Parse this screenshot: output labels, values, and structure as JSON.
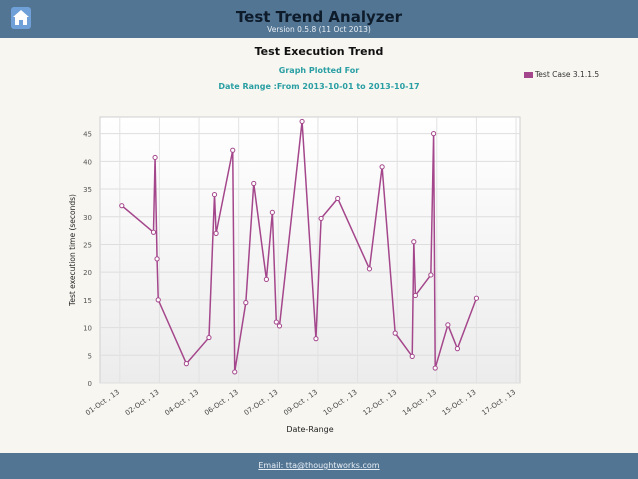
{
  "header": {
    "title": "Test Trend Analyzer",
    "version": "Version 0.5.8 (11 Oct 2013)",
    "home_icon": "home-icon"
  },
  "footer": {
    "email_text": "Email: tta@thoughtworks.com"
  },
  "chart_data": {
    "type": "line",
    "title": "Test Execution Trend",
    "subtitle": "Graph Plotted For",
    "date_range": "Date Range :From 2013-10-01 to 2013-10-17",
    "xlabel": "Date-Range",
    "ylabel": "Test execution time (seconds)",
    "ylim": [
      0,
      48
    ],
    "yticks": [
      0,
      5,
      10,
      15,
      20,
      25,
      30,
      35,
      40,
      45
    ],
    "xlim": [
      0,
      17
    ],
    "xticks": [
      {
        "x": 0.5,
        "label": "01-Oct , 13"
      },
      {
        "x": 1.5,
        "label": "02-Oct , 13"
      },
      {
        "x": 2.5,
        "label": "04-Oct , 13"
      },
      {
        "x": 3.5,
        "label": "06-Oct , 13"
      },
      {
        "x": 4.5,
        "label": "07-Oct , 13"
      },
      {
        "x": 5.5,
        "label": "09-Oct , 13"
      },
      {
        "x": 6.5,
        "label": "10-Oct , 13"
      },
      {
        "x": 7.5,
        "label": "12-Oct , 13"
      },
      {
        "x": 8.5,
        "label": "14-Oct , 13"
      },
      {
        "x": 9.5,
        "label": "15-Oct , 13"
      },
      {
        "x": 10.5,
        "label": "17-Oct , 13"
      }
    ],
    "grid": true,
    "legend_position": "top-right",
    "series": [
      {
        "name": "Test Case 3.1.1.5",
        "color": "#a4468b",
        "points": [
          [
            0.55,
            32
          ],
          [
            1.35,
            27.2
          ],
          [
            1.39,
            40.7
          ],
          [
            1.44,
            22.4
          ],
          [
            1.47,
            15
          ],
          [
            2.18,
            3.5
          ],
          [
            2.75,
            8.2
          ],
          [
            2.89,
            34
          ],
          [
            2.93,
            27
          ],
          [
            3.35,
            42
          ],
          [
            3.4,
            2
          ],
          [
            3.68,
            14.5
          ],
          [
            3.88,
            36
          ],
          [
            4.2,
            18.7
          ],
          [
            4.35,
            30.8
          ],
          [
            4.45,
            11
          ],
          [
            4.53,
            10.3
          ],
          [
            5.1,
            47.2
          ],
          [
            5.45,
            8
          ],
          [
            5.58,
            29.7
          ],
          [
            6.0,
            33.3
          ],
          [
            6.8,
            20.6
          ],
          [
            7.12,
            39
          ],
          [
            7.45,
            9
          ],
          [
            7.88,
            4.8
          ],
          [
            7.92,
            25.5
          ],
          [
            7.96,
            15.8
          ],
          [
            8.35,
            19.5
          ],
          [
            8.42,
            45
          ],
          [
            8.46,
            2.7
          ],
          [
            8.78,
            10.5
          ],
          [
            9.02,
            6.2
          ],
          [
            9.5,
            15.3
          ]
        ]
      }
    ]
  }
}
